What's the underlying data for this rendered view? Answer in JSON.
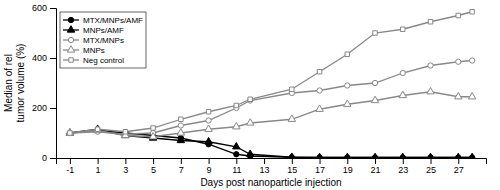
{
  "chart_data": {
    "type": "line",
    "xlabel": "Days post nanoparticle injection",
    "ylabel": "Median of rel\ntumor volume (%)",
    "x": [
      -1,
      1,
      3,
      5,
      7,
      9,
      11,
      12,
      15,
      17,
      19,
      21,
      23,
      25,
      27,
      28
    ],
    "series": [
      {
        "name": "MTX/MNPs/AMF",
        "color": "#000000",
        "marker": "circle",
        "values": [
          100,
          110,
          100,
          90,
          80,
          55,
          15,
          8,
          3,
          2,
          2,
          2,
          2,
          2,
          2,
          2
        ]
      },
      {
        "name": "MNPs/AMF",
        "color": "#000000",
        "marker": "triangle",
        "values": [
          100,
          115,
          90,
          80,
          70,
          65,
          45,
          15,
          3,
          2,
          2,
          2,
          2,
          2,
          2,
          2
        ]
      },
      {
        "name": "MTX/MNPs",
        "color": "#888888",
        "marker": "circle-open",
        "values": [
          100,
          105,
          95,
          100,
          130,
          150,
          200,
          230,
          260,
          270,
          290,
          300,
          340,
          370,
          385,
          390
        ]
      },
      {
        "name": "MNPs",
        "color": "#888888",
        "marker": "triangle-open",
        "values": [
          100,
          110,
          90,
          85,
          100,
          115,
          125,
          140,
          155,
          195,
          215,
          230,
          250,
          265,
          245,
          245
        ]
      },
      {
        "name": "Neg control",
        "color": "#888888",
        "marker": "square-open",
        "values": [
          100,
          115,
          105,
          120,
          155,
          185,
          210,
          235,
          275,
          345,
          415,
          500,
          515,
          545,
          570,
          585
        ]
      }
    ],
    "xlim": [
      -2,
      29
    ],
    "ylim": [
      0,
      600
    ],
    "xticks": [
      -1,
      1,
      3,
      5,
      7,
      9,
      11,
      13,
      15,
      17,
      19,
      21,
      23,
      25,
      27
    ],
    "yticks": [
      0,
      200,
      400,
      600
    ],
    "legend": "upper left"
  }
}
